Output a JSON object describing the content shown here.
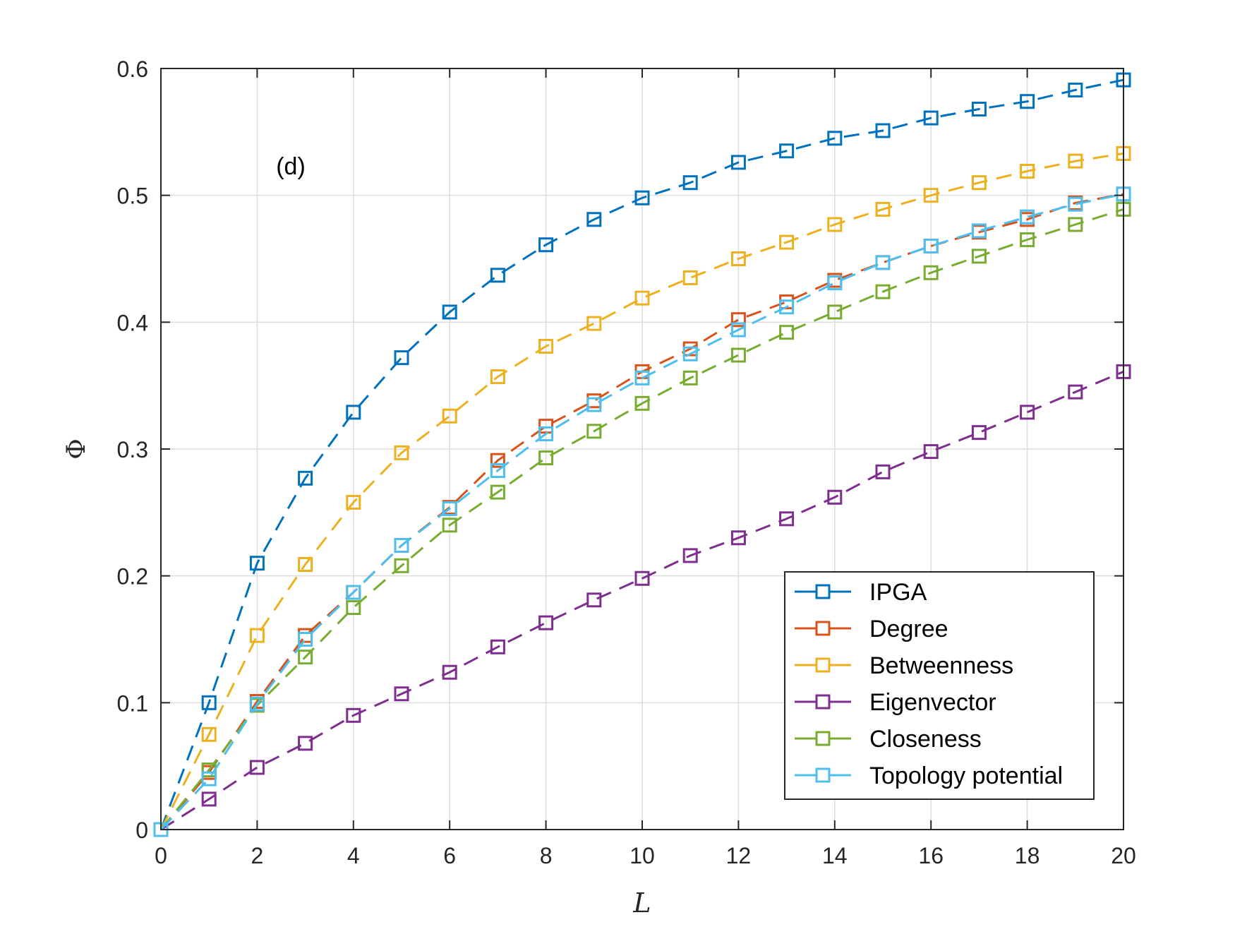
{
  "chart_data": {
    "type": "line",
    "title": "",
    "annotation": "(d)",
    "xlabel": "L",
    "ylabel": "Φ",
    "xlim": [
      0,
      20
    ],
    "ylim": [
      0,
      0.6
    ],
    "xticks": [
      0,
      2,
      4,
      6,
      8,
      10,
      12,
      14,
      16,
      18,
      20
    ],
    "yticks": [
      0,
      0.1,
      0.2,
      0.3,
      0.4,
      0.5,
      0.6
    ],
    "xtick_labels": [
      "0",
      "2",
      "4",
      "6",
      "8",
      "10",
      "12",
      "14",
      "16",
      "18",
      "20"
    ],
    "ytick_labels": [
      "0",
      "0.1",
      "0.2",
      "0.3",
      "0.4",
      "0.5",
      "0.6"
    ],
    "grid": true,
    "legend_position": "bottom-right",
    "marker": "square",
    "line_style": "dashed",
    "x": [
      0,
      1,
      2,
      3,
      4,
      5,
      6,
      7,
      8,
      9,
      10,
      11,
      12,
      13,
      14,
      15,
      16,
      17,
      18,
      19,
      20
    ],
    "series": [
      {
        "name": "IPGA",
        "color": "#0072BD",
        "values": [
          0,
          0.1,
          0.21,
          0.277,
          0.329,
          0.372,
          0.408,
          0.437,
          0.461,
          0.481,
          0.498,
          0.51,
          0.526,
          0.535,
          0.545,
          0.551,
          0.561,
          0.568,
          0.574,
          0.583,
          0.591
        ]
      },
      {
        "name": "Degree",
        "color": "#D95319",
        "values": [
          0,
          0.045,
          0.101,
          0.153,
          0.187,
          0.224,
          0.254,
          0.291,
          0.318,
          0.338,
          0.361,
          0.379,
          0.402,
          0.416,
          0.433,
          0.447,
          0.46,
          0.471,
          0.481,
          0.494,
          0.501
        ]
      },
      {
        "name": "Betweenness",
        "color": "#EDB120",
        "values": [
          0,
          0.075,
          0.153,
          0.209,
          0.258,
          0.297,
          0.326,
          0.357,
          0.381,
          0.399,
          0.419,
          0.435,
          0.45,
          0.463,
          0.477,
          0.489,
          0.5,
          0.51,
          0.519,
          0.527,
          0.533
        ]
      },
      {
        "name": "Eigenvector",
        "color": "#7E2F8E",
        "values": [
          0,
          0.024,
          0.049,
          0.068,
          0.09,
          0.107,
          0.124,
          0.144,
          0.163,
          0.181,
          0.198,
          0.216,
          0.23,
          0.245,
          0.262,
          0.282,
          0.298,
          0.313,
          0.329,
          0.345,
          0.361
        ]
      },
      {
        "name": "Closeness",
        "color": "#77AC30",
        "values": [
          0,
          0.047,
          0.098,
          0.136,
          0.175,
          0.208,
          0.24,
          0.266,
          0.293,
          0.314,
          0.336,
          0.356,
          0.374,
          0.392,
          0.408,
          0.424,
          0.439,
          0.452,
          0.465,
          0.477,
          0.489
        ]
      },
      {
        "name": "Topology potential",
        "color": "#4DBEEE",
        "values": [
          0,
          0.04,
          0.099,
          0.15,
          0.187,
          0.224,
          0.253,
          0.283,
          0.312,
          0.335,
          0.356,
          0.375,
          0.394,
          0.412,
          0.431,
          0.447,
          0.46,
          0.472,
          0.483,
          0.493,
          0.501
        ]
      }
    ]
  }
}
